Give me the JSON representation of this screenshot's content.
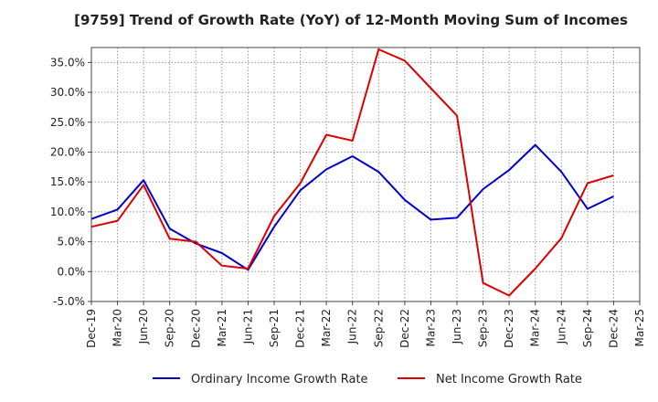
{
  "chart_data": {
    "type": "line",
    "title": "[9759]  Trend of Growth Rate (YoY) of 12-Month Moving Sum of Incomes",
    "xlabel": "",
    "ylabel": "",
    "x_ticks": [
      "Dec-19",
      "Mar-20",
      "Jun-20",
      "Sep-20",
      "Dec-20",
      "Mar-21",
      "Jun-21",
      "Sep-21",
      "Dec-21",
      "Mar-22",
      "Jun-22",
      "Sep-22",
      "Dec-22",
      "Mar-23",
      "Jun-23",
      "Sep-23",
      "Dec-23",
      "Mar-24",
      "Jun-24",
      "Sep-24",
      "Dec-24",
      "Mar-25"
    ],
    "y_ticks": [
      -5,
      0,
      5,
      10,
      15,
      20,
      25,
      30,
      35
    ],
    "y_tick_labels": [
      "-5.0%",
      "0.0%",
      "5.0%",
      "10.0%",
      "15.0%",
      "20.0%",
      "25.0%",
      "30.0%",
      "35.0%"
    ],
    "ylim": [
      -5,
      37.5
    ],
    "grid": true,
    "legend_position": "bottom",
    "series": [
      {
        "name": "Ordinary Income Growth Rate",
        "color": "#0000cc",
        "x": [
          "Dec-19",
          "Mar-20",
          "Jun-20",
          "Sep-20",
          "Dec-20",
          "Mar-21",
          "Jun-21",
          "Sep-21",
          "Dec-21",
          "Mar-22",
          "Jun-22",
          "Sep-22",
          "Dec-22",
          "Mar-23",
          "Jun-23",
          "Sep-23",
          "Dec-23",
          "Mar-24",
          "Jun-24",
          "Sep-24",
          "Dec-24"
        ],
        "values": [
          8.8,
          10.4,
          15.3,
          7.2,
          4.7,
          3.1,
          0.3,
          7.5,
          13.6,
          17.1,
          19.3,
          16.7,
          12.0,
          8.7,
          9.0,
          13.8,
          17.0,
          21.2,
          16.7,
          10.5,
          12.6
        ]
      },
      {
        "name": "Net Income Growth Rate",
        "color": "#dd0000",
        "x": [
          "Dec-19",
          "Mar-20",
          "Jun-20",
          "Sep-20",
          "Dec-20",
          "Mar-21",
          "Jun-21",
          "Sep-21",
          "Dec-21",
          "Mar-22",
          "Jun-22",
          "Sep-22",
          "Dec-22",
          "Mar-23",
          "Jun-23",
          "Sep-23",
          "Dec-23",
          "Mar-24",
          "Jun-24",
          "Sep-24",
          "Dec-24"
        ],
        "values": [
          7.5,
          8.5,
          14.5,
          5.5,
          5.0,
          1.0,
          0.5,
          9.3,
          14.8,
          22.9,
          21.9,
          37.2,
          35.3,
          30.7,
          26.1,
          -1.9,
          -4.0,
          0.5,
          5.6,
          14.8,
          16.1
        ]
      }
    ]
  }
}
